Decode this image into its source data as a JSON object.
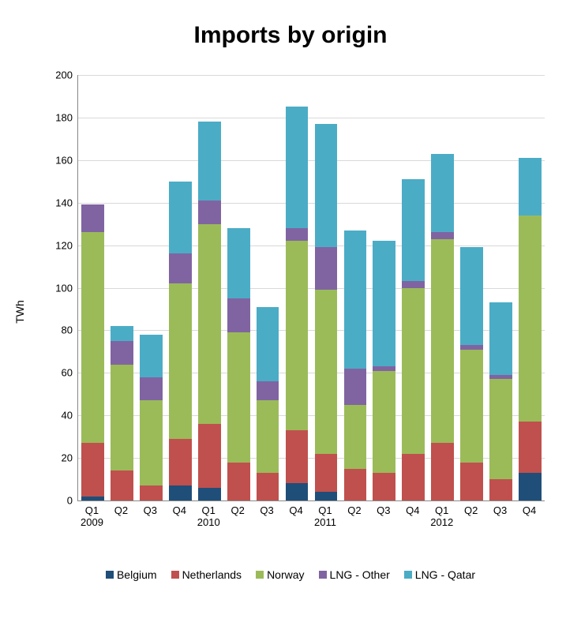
{
  "chart": {
    "type": "stacked-bar",
    "title": "Imports by origin",
    "ylabel": "TWh",
    "title_fontsize": 30,
    "label_fontsize": 14,
    "tick_fontsize": 13,
    "ylim": [
      0,
      200
    ],
    "ytick_step": 20,
    "background_color": "#ffffff",
    "grid_color": "#d9d9d9",
    "axis_color": "#888888",
    "bar_width": 0.78,
    "categories": [
      {
        "q": "Q1",
        "year": "2009"
      },
      {
        "q": "Q2",
        "year": ""
      },
      {
        "q": "Q3",
        "year": ""
      },
      {
        "q": "Q4",
        "year": ""
      },
      {
        "q": "Q1",
        "year": "2010"
      },
      {
        "q": "Q2",
        "year": ""
      },
      {
        "q": "Q3",
        "year": ""
      },
      {
        "q": "Q4",
        "year": ""
      },
      {
        "q": "Q1",
        "year": "2011"
      },
      {
        "q": "Q2",
        "year": ""
      },
      {
        "q": "Q3",
        "year": ""
      },
      {
        "q": "Q4",
        "year": ""
      },
      {
        "q": "Q1",
        "year": "2012"
      },
      {
        "q": "Q2",
        "year": ""
      },
      {
        "q": "Q3",
        "year": ""
      },
      {
        "q": "Q4",
        "year": ""
      }
    ],
    "series": [
      {
        "name": "Belgium",
        "color": "#1f4e79",
        "values": [
          2,
          0,
          0,
          7,
          6,
          0,
          0,
          8,
          4,
          0,
          0,
          0,
          0,
          0,
          0,
          13
        ]
      },
      {
        "name": "Netherlands",
        "color": "#c0504d",
        "values": [
          25,
          14,
          7,
          22,
          30,
          18,
          13,
          25,
          18,
          15,
          13,
          22,
          27,
          18,
          10,
          24
        ]
      },
      {
        "name": "Norway",
        "color": "#9bbb59",
        "values": [
          99,
          50,
          40,
          73,
          94,
          61,
          34,
          89,
          77,
          30,
          48,
          78,
          96,
          53,
          47,
          97
        ]
      },
      {
        "name": "LNG - Other",
        "color": "#8064a2",
        "values": [
          13,
          11,
          11,
          14,
          11,
          16,
          9,
          6,
          20,
          17,
          2,
          3,
          3,
          2,
          2,
          0
        ]
      },
      {
        "name": "LNG - Qatar",
        "color": "#4bacc6",
        "values": [
          0,
          7,
          20,
          34,
          37,
          33,
          35,
          57,
          58,
          65,
          59,
          48,
          37,
          46,
          34,
          27
        ]
      }
    ]
  }
}
